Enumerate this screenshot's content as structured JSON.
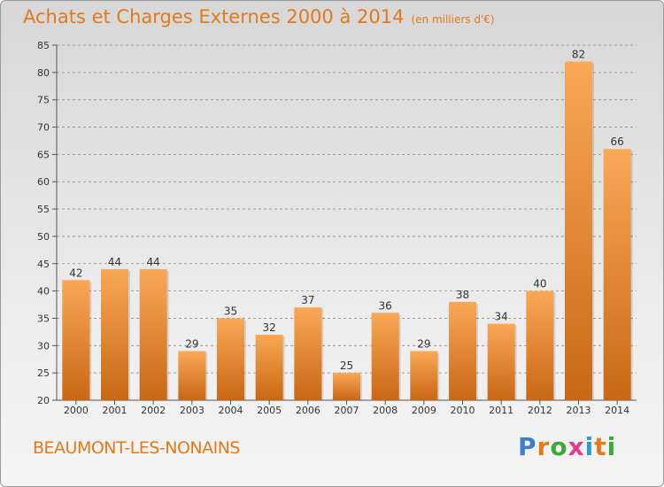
{
  "title": "Achats et Charges Externes 2000 à 2014",
  "unit": "(en milliers d'€)",
  "commune": "BEAUMONT-LES-NONAINS",
  "logo": {
    "text": "Proxiti",
    "letter_colors": [
      "#3b7fd0",
      "#e57c1c",
      "#3aaa35",
      "#e23c8b",
      "#2b9ad8",
      "#e57c1c",
      "#3aaa35"
    ]
  },
  "colors": {
    "bar_light": "#f9a856",
    "bar_dark": "#c96714",
    "title": "#e07a1b",
    "grid": "#8c8c8c"
  },
  "chart_data": {
    "type": "bar",
    "title": "Achats et Charges Externes 2000 à 2014",
    "ylabel": "",
    "xlabel": "",
    "ylim": [
      20,
      85
    ],
    "yticks": [
      20,
      25,
      30,
      35,
      40,
      45,
      50,
      55,
      60,
      65,
      70,
      75,
      80,
      85
    ],
    "grid": "dashed horizontal",
    "categories": [
      "2000",
      "2001",
      "2002",
      "2003",
      "2004",
      "2005",
      "2006",
      "2007",
      "2008",
      "2009",
      "2010",
      "2011",
      "2012",
      "2013",
      "2014"
    ],
    "values": [
      42,
      44,
      44,
      29,
      35,
      32,
      37,
      25,
      36,
      29,
      38,
      34,
      40,
      82,
      66
    ]
  }
}
